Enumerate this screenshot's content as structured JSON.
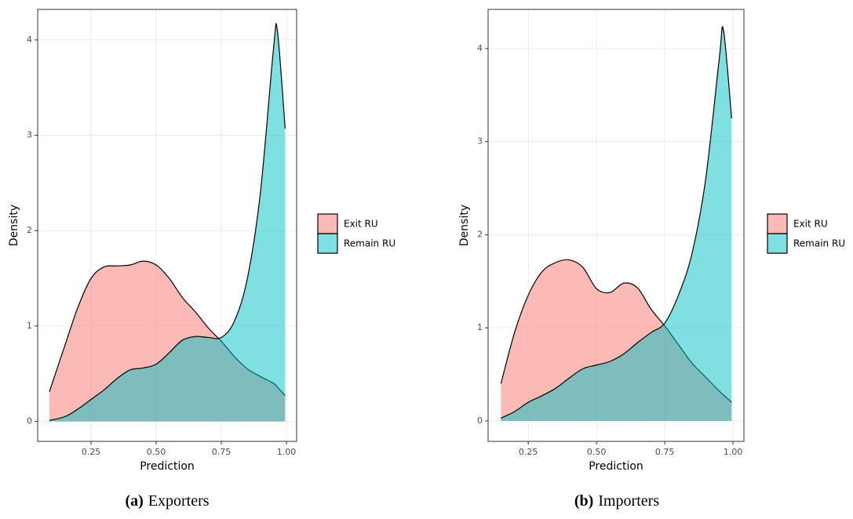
{
  "chart_data": [
    {
      "type": "density",
      "caption_label": "(a)",
      "caption": "Exporters",
      "x_label": "Prediction",
      "y_label": "Density",
      "x": [
        0.09,
        0.15,
        0.2,
        0.25,
        0.3,
        0.35,
        0.4,
        0.45,
        0.5,
        0.55,
        0.6,
        0.65,
        0.7,
        0.75,
        0.8,
        0.85,
        0.9,
        0.95,
        0.965,
        0.995
      ],
      "series": [
        {
          "name": "Exit RU",
          "color": "#F8766D",
          "values": [
            0.31,
            0.8,
            1.2,
            1.5,
            1.62,
            1.63,
            1.64,
            1.68,
            1.64,
            1.5,
            1.3,
            1.15,
            0.98,
            0.84,
            0.68,
            0.55,
            0.47,
            0.4,
            0.36,
            0.27
          ]
        },
        {
          "name": "Remain RU",
          "color": "#00BFC4",
          "values": [
            0.01,
            0.05,
            0.13,
            0.23,
            0.33,
            0.45,
            0.54,
            0.56,
            0.6,
            0.72,
            0.85,
            0.89,
            0.88,
            0.88,
            1.05,
            1.5,
            2.4,
            3.9,
            4.1,
            3.07
          ]
        }
      ],
      "xlim": [
        0.045,
        1.039
      ],
      "ylim": [
        -0.21,
        4.32
      ],
      "xticks": [
        0.25,
        {
          "value": 0.5,
          "label": "0.50"
        },
        0.75,
        {
          "value": 1,
          "label": "1.00"
        }
      ],
      "yticks": [
        0,
        1,
        2,
        3,
        4
      ],
      "grid": true,
      "legend": "right"
    },
    {
      "type": "density",
      "caption_label": "(b)",
      "caption": "Importers",
      "x_label": "Prediction",
      "y_label": "Density",
      "x": [
        0.15,
        0.2,
        0.25,
        0.3,
        0.35,
        0.4,
        0.45,
        0.5,
        0.55,
        0.6,
        0.65,
        0.7,
        0.75,
        0.8,
        0.85,
        0.9,
        0.95,
        0.965,
        0.995
      ],
      "series": [
        {
          "name": "Exit RU",
          "color": "#F8766D",
          "values": [
            0.4,
            0.95,
            1.35,
            1.6,
            1.7,
            1.73,
            1.65,
            1.42,
            1.38,
            1.48,
            1.43,
            1.2,
            1.02,
            0.82,
            0.62,
            0.47,
            0.32,
            0.28,
            0.2
          ]
        },
        {
          "name": "Remain RU",
          "color": "#00BFC4",
          "values": [
            0.03,
            0.1,
            0.2,
            0.27,
            0.35,
            0.46,
            0.56,
            0.6,
            0.64,
            0.72,
            0.84,
            0.95,
            1.05,
            1.35,
            1.8,
            2.6,
            3.9,
            4.2,
            3.25
          ]
        }
      ],
      "xlim": [
        0.103,
        1.04
      ],
      "ylim": [
        -0.22,
        4.42
      ],
      "xticks": [
        0.25,
        {
          "value": 0.5,
          "label": "0.50"
        },
        0.75,
        {
          "value": 1,
          "label": "1.00"
        }
      ],
      "yticks": [
        0,
        1,
        2,
        3,
        4
      ],
      "grid": true,
      "legend": "right"
    }
  ]
}
